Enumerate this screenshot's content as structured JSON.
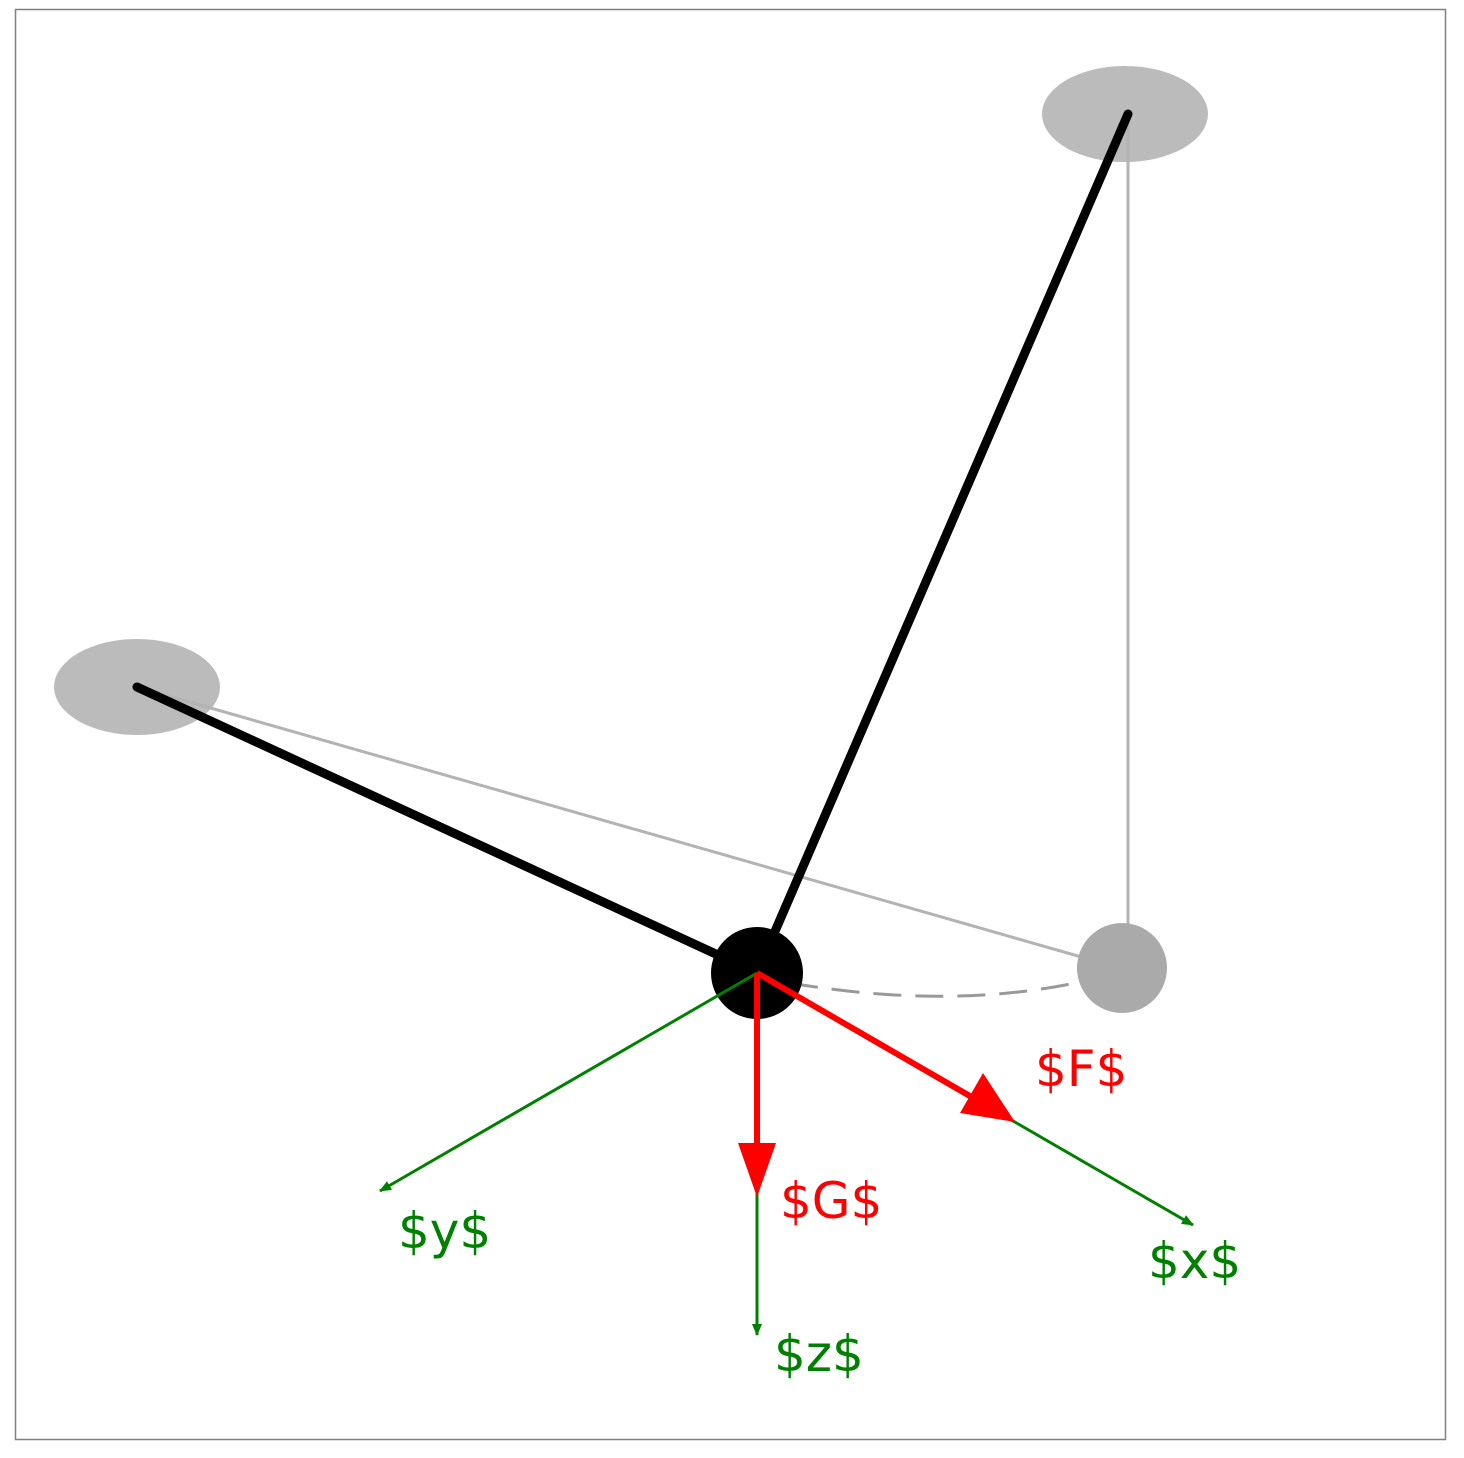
{
  "colors": {
    "frame": "#808080",
    "rope": "#000000",
    "ghost": "#b3b3b3",
    "ghost_mass": "#aaaaaa",
    "mount": "#bbbbbb",
    "axis": "#008000",
    "force": "#ff0000"
  },
  "labels": {
    "force_f": "$F$",
    "force_g": "$G$",
    "axis_x": "$x$",
    "axis_y": "$y$",
    "axis_z": "$z$"
  }
}
